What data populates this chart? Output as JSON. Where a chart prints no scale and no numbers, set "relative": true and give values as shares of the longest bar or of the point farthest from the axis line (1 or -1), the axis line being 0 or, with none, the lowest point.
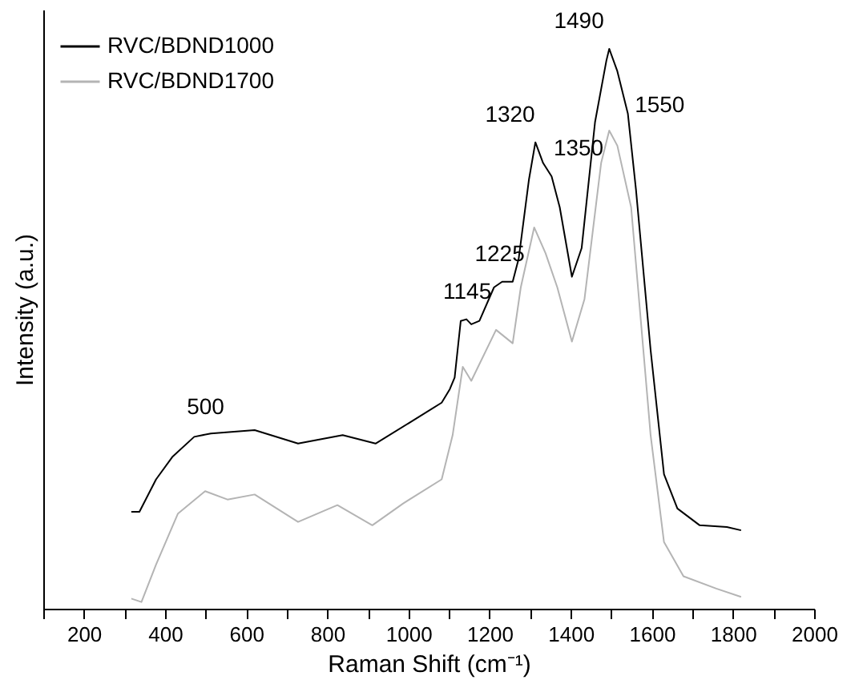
{
  "chart_data": {
    "type": "line",
    "relative": true,
    "xlabel": "Raman Shift (cm⁻¹)",
    "ylabel": "Intensity (a.u.)",
    "xlim": [
      100,
      2000
    ],
    "xticks": [
      {
        "value": 100,
        "label": null
      },
      200,
      {
        "value": 300,
        "label": null
      },
      400,
      {
        "value": 500,
        "label": null
      },
      600,
      {
        "value": 700,
        "label": null
      },
      800,
      {
        "value": 900,
        "label": null
      },
      1000,
      {
        "value": 1100,
        "label": null
      },
      1200,
      {
        "value": 1300,
        "label": null
      },
      1400,
      {
        "value": 1500,
        "label": null
      },
      1600,
      {
        "value": 1700,
        "label": null
      },
      1800,
      {
        "value": 1900,
        "label": null
      },
      2000
    ],
    "legend": "top left",
    "grid": false,
    "line_style": "solid",
    "series": [
      {
        "name": "RVC/BDND1000",
        "color": "#000000",
        "x": [
          317,
          337,
          378,
          418,
          472,
          513,
          621,
          728,
          838,
          919,
          1000,
          1082,
          1102,
          1114,
          1129,
          1143,
          1155,
          1175,
          1211,
          1231,
          1257,
          1272,
          1297,
          1313,
          1332,
          1353,
          1373,
          1403,
          1427,
          1460,
          1488,
          1495,
          1515,
          1541,
          1561,
          1597,
          1630,
          1663,
          1718,
          1785,
          1820
        ],
        "values": [
          0.173,
          0.173,
          0.231,
          0.271,
          0.307,
          0.313,
          0.319,
          0.295,
          0.31,
          0.295,
          0.331,
          0.368,
          0.392,
          0.413,
          0.514,
          0.517,
          0.508,
          0.514,
          0.574,
          0.584,
          0.584,
          0.626,
          0.766,
          0.833,
          0.796,
          0.772,
          0.717,
          0.593,
          0.644,
          0.869,
          0.979,
          1.0,
          0.96,
          0.884,
          0.748,
          0.462,
          0.24,
          0.179,
          0.149,
          0.146,
          0.14
        ]
      },
      {
        "name": "RVC/BDND1700",
        "color": "#b4b4b4",
        "x": [
          317,
          342,
          378,
          432,
          499,
          554,
          621,
          728,
          825,
          911,
          987,
          1082,
          1109,
          1134,
          1155,
          1216,
          1257,
          1277,
          1310,
          1338,
          1367,
          1403,
          1434,
          1475,
          1495,
          1515,
          1549,
          1597,
          1630,
          1678,
          1759,
          1820
        ],
        "values": [
          0.018,
          0.012,
          0.079,
          0.17,
          0.21,
          0.195,
          0.204,
          0.155,
          0.185,
          0.149,
          0.188,
          0.231,
          0.31,
          0.432,
          0.407,
          0.498,
          0.474,
          0.574,
          0.681,
          0.635,
          0.574,
          0.477,
          0.553,
          0.796,
          0.854,
          0.827,
          0.717,
          0.31,
          0.119,
          0.058,
          0.036,
          0.021
        ]
      }
    ],
    "annotations": [
      {
        "text": "500",
        "x": 500,
        "y": 0.31
      },
      {
        "text": "1145",
        "x": 1145,
        "y": 0.517
      },
      {
        "text": "1225",
        "x": 1225,
        "y": 0.584
      },
      {
        "text": "1320",
        "x": 1320,
        "y": 0.833
      },
      {
        "text": "1350",
        "x": 1350,
        "y": 0.772
      },
      {
        "text": "1490",
        "x": 1490,
        "y": 1.0
      },
      {
        "text": "1550",
        "x": 1550,
        "y": 0.85
      }
    ]
  }
}
